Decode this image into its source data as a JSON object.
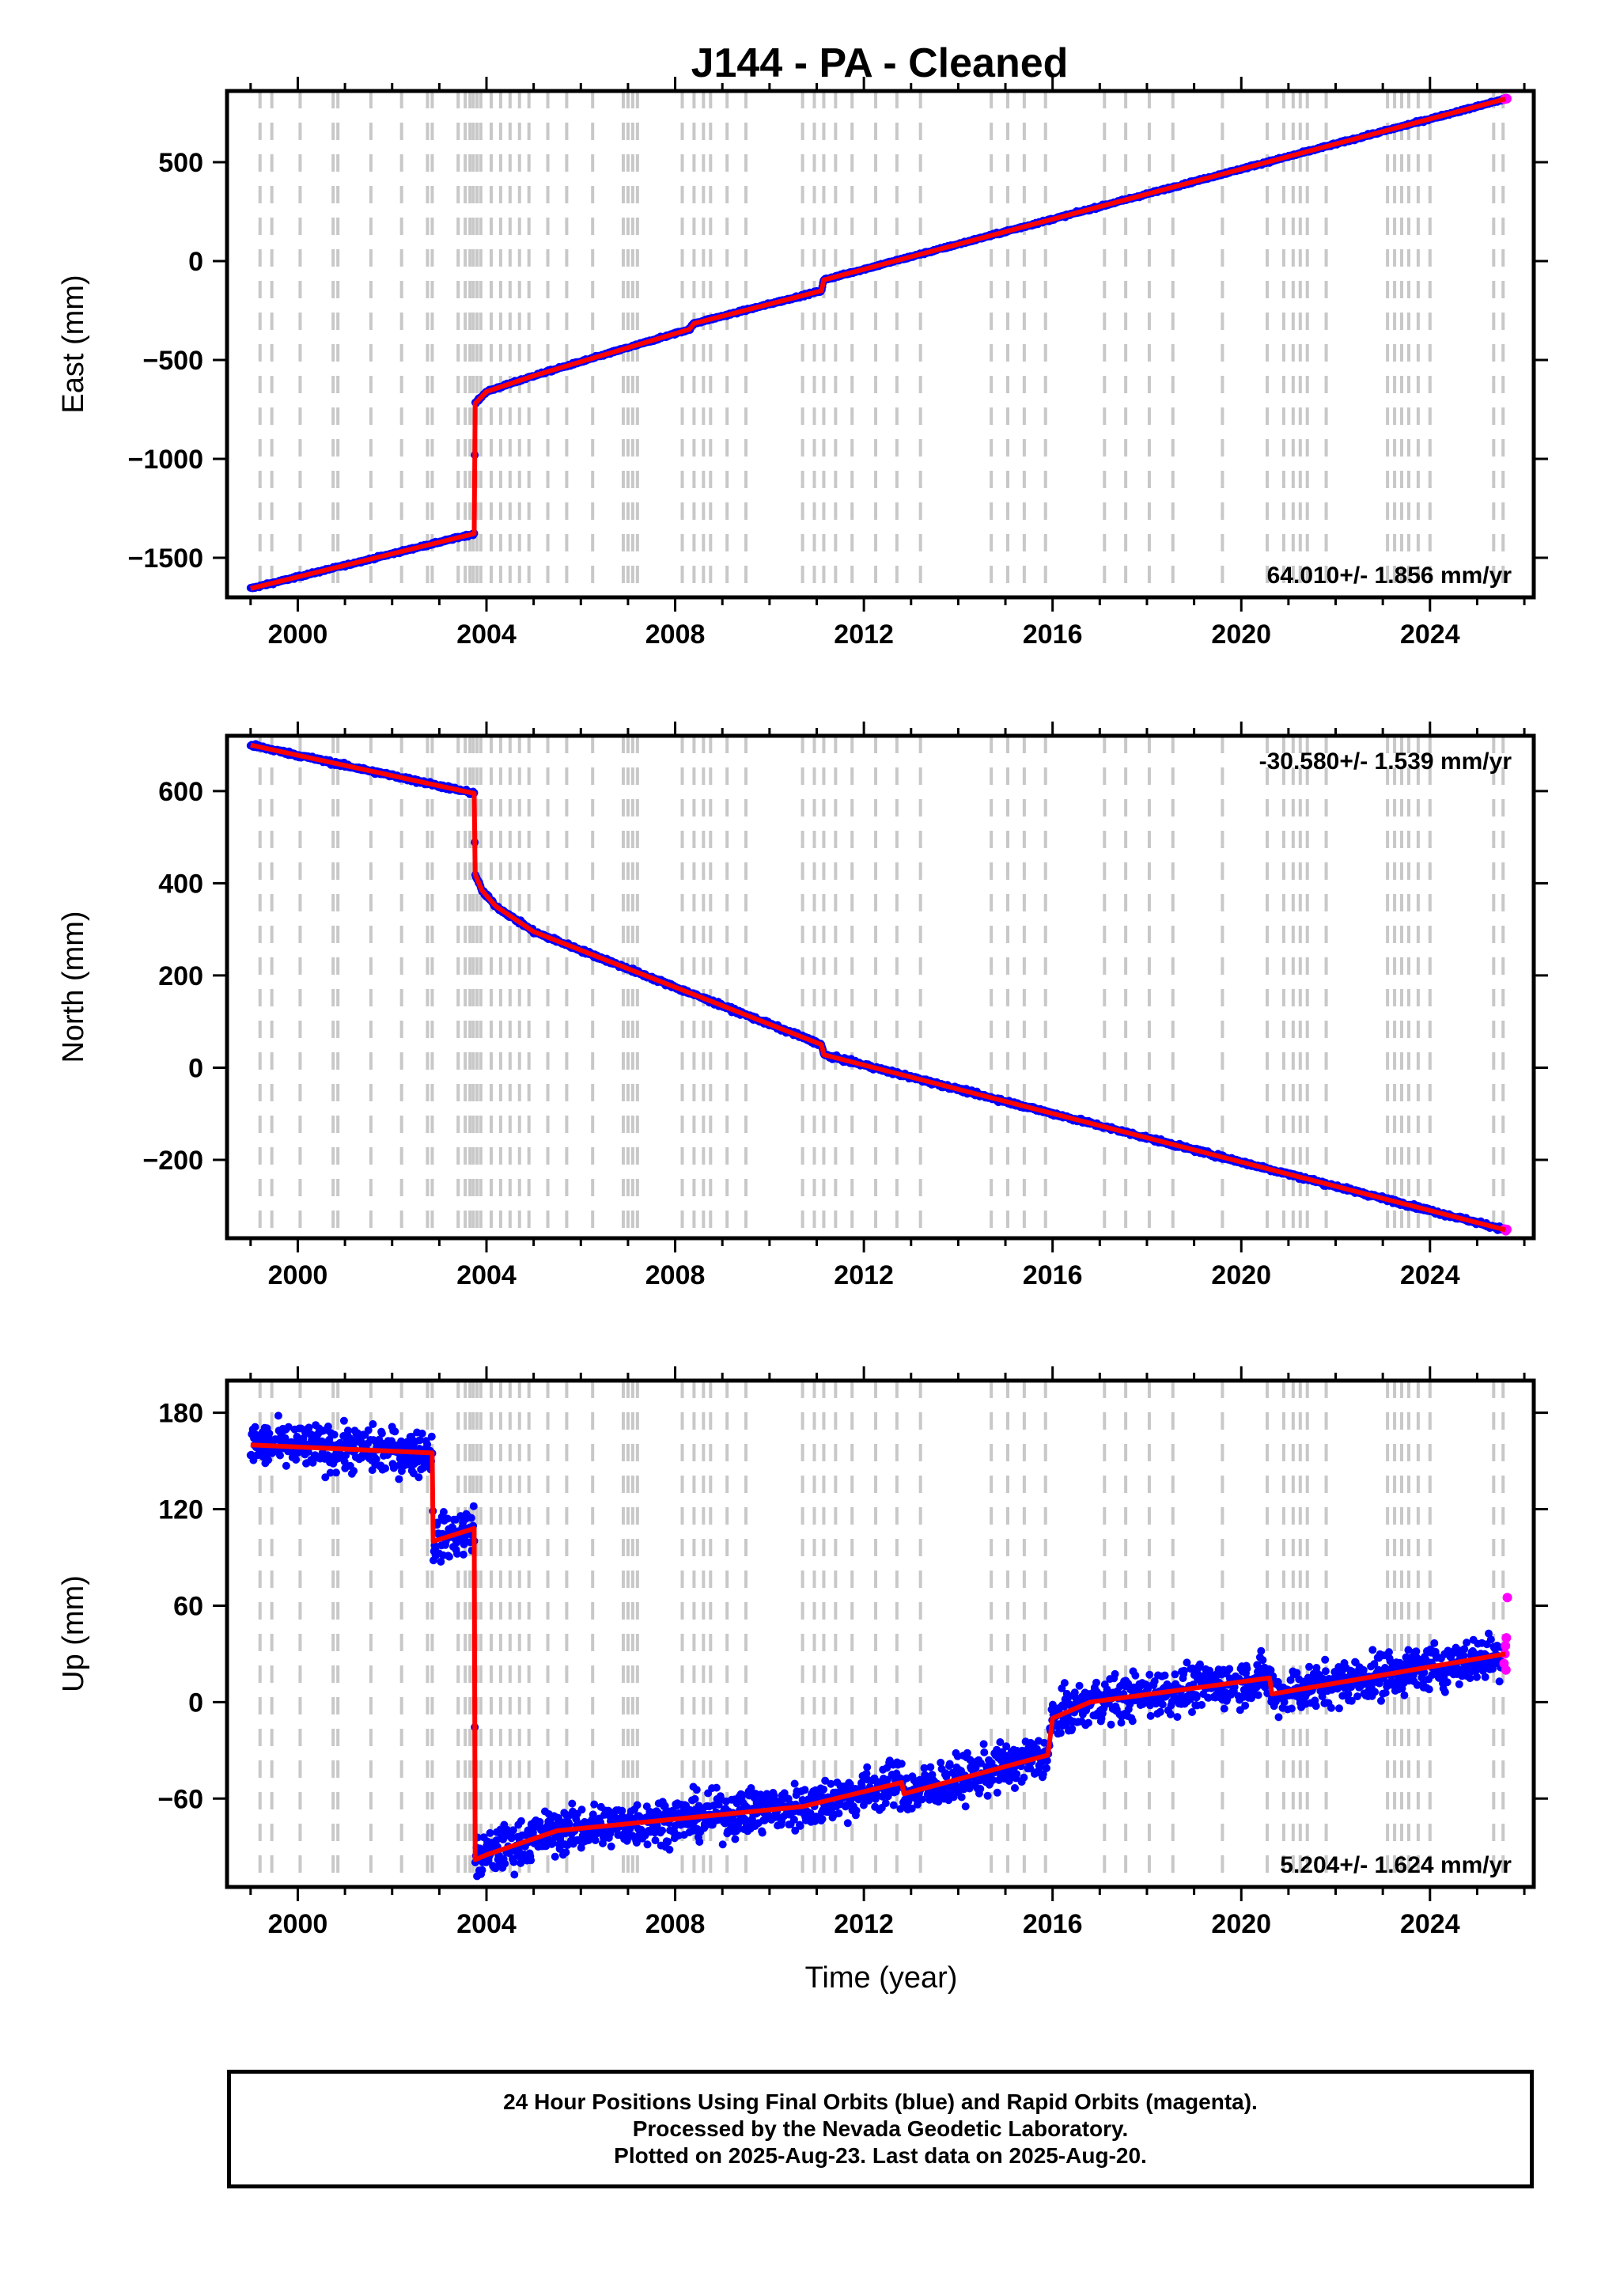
{
  "title": "J144  - PA - Cleaned",
  "xlabel": "Time (year)",
  "x_ticks": [
    2000,
    2004,
    2008,
    2012,
    2016,
    2020,
    2024
  ],
  "xlim": [
    1998.5,
    2026.2
  ],
  "equipment_changes": [
    1999.2,
    1999.45,
    2000.05,
    2000.75,
    2000.85,
    2001.55,
    2002.2,
    2002.75,
    2002.85,
    2003.4,
    2003.55,
    2003.65,
    2003.72,
    2003.8,
    2003.88,
    2004.1,
    2004.3,
    2004.5,
    2004.7,
    2004.9,
    2005.3,
    2005.7,
    2006.25,
    2006.9,
    2007.0,
    2007.1,
    2007.2,
    2008.15,
    2008.4,
    2008.6,
    2008.75,
    2009.1,
    2009.5,
    2010.7,
    2010.95,
    2011.15,
    2011.4,
    2011.75,
    2012.25,
    2012.7,
    2013.2,
    2014.7,
    2015.05,
    2015.4,
    2015.85,
    2017.1,
    2017.55,
    2018.05,
    2018.55,
    2019.6,
    2020.55,
    2020.9,
    2021.1,
    2021.25,
    2021.4,
    2021.8,
    2023.1,
    2023.25,
    2023.4,
    2023.55,
    2023.75,
    2024.0,
    2025.35,
    2025.55
  ],
  "colors": {
    "final": "#0000ff",
    "rapid": "#ff00ff",
    "model": "#ff0000",
    "events": "#c8c8c8"
  },
  "chart_data": [
    {
      "type": "scatter",
      "component": "east",
      "ylabel": "East (mm)",
      "ylim": [
        -1700,
        860
      ],
      "y_ticks": [
        -1500,
        -1000,
        -500,
        0,
        500
      ],
      "rate_label": "64.010+/- 1.856 mm/yr",
      "rate_position": "bottom-right",
      "noise": 4,
      "model": [
        [
          1999.0,
          -1655
        ],
        [
          2003.74,
          -1378
        ],
        [
          2003.76,
          -720
        ],
        [
          2004.0,
          -660
        ],
        [
          2005.0,
          -580
        ],
        [
          2008.3,
          -345
        ],
        [
          2008.4,
          -315
        ],
        [
          2011.1,
          -150
        ],
        [
          2011.15,
          -95
        ],
        [
          2025.6,
          820
        ]
      ],
      "rapid": [
        [
          2025.58,
          818
        ],
        [
          2025.61,
          822
        ],
        [
          2025.63,
          821
        ]
      ]
    },
    {
      "type": "scatter",
      "component": "north",
      "ylabel": "North (mm)",
      "ylim": [
        -370,
        720
      ],
      "y_ticks": [
        -200,
        0,
        200,
        400,
        600
      ],
      "rate_label": "-30.580+/- 1.539 mm/yr",
      "rate_position": "top-right",
      "noise": 3,
      "model": [
        [
          1999.0,
          700
        ],
        [
          2003.74,
          595
        ],
        [
          2003.76,
          420
        ],
        [
          2003.9,
          385
        ],
        [
          2004.2,
          350
        ],
        [
          2005.0,
          295
        ],
        [
          2011.1,
          50
        ],
        [
          2011.15,
          28
        ],
        [
          2025.6,
          -352
        ]
      ],
      "rapid": [
        [
          2025.58,
          -350
        ],
        [
          2025.61,
          -354
        ],
        [
          2025.63,
          -351
        ]
      ]
    },
    {
      "type": "scatter",
      "component": "up",
      "ylabel": "Up (mm)",
      "ylim": [
        -115,
        200
      ],
      "y_ticks": [
        -60,
        0,
        60,
        120,
        180
      ],
      "rate_label": "5.204+/- 1.624 mm/yr",
      "rate_position": "bottom-right",
      "noise": 10,
      "model": [
        [
          1999.0,
          160
        ],
        [
          2002.85,
          155
        ],
        [
          2002.87,
          100
        ],
        [
          2003.74,
          108
        ],
        [
          2003.76,
          -98
        ],
        [
          2004.0,
          -95
        ],
        [
          2005.5,
          -80
        ],
        [
          2010.7,
          -65
        ],
        [
          2012.8,
          -50
        ],
        [
          2012.85,
          -57
        ],
        [
          2015.9,
          -33
        ],
        [
          2016.0,
          -10
        ],
        [
          2016.8,
          0
        ],
        [
          2020.6,
          15
        ],
        [
          2020.65,
          5
        ],
        [
          2025.6,
          30
        ]
      ],
      "rapid": [
        [
          2025.57,
          24
        ],
        [
          2025.59,
          30
        ],
        [
          2025.6,
          35
        ],
        [
          2025.61,
          20
        ],
        [
          2025.62,
          40
        ],
        [
          2025.64,
          65
        ]
      ]
    }
  ],
  "footer": {
    "line1": "24 Hour Positions Using Final Orbits (blue) and Rapid Orbits (magenta).",
    "line2": "Processed by the Nevada Geodetic Laboratory.",
    "line3": "Plotted on 2025-Aug-23. Last data on 2025-Aug-20."
  }
}
